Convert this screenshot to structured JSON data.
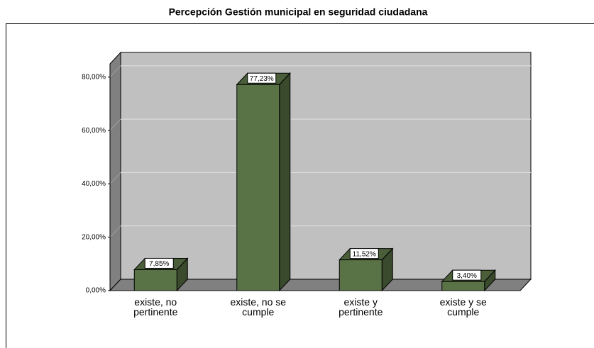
{
  "chart_data": {
    "type": "bar3d",
    "title": "Percepción  Gestión municipal en seguridad ciudadana",
    "categories": [
      "existe, no pertinente",
      "existe, no se cumple",
      "existe y pertinente",
      "existe y se cumple"
    ],
    "values": [
      7.85,
      77.23,
      11.52,
      3.4
    ],
    "value_labels": [
      "7,85%",
      "77,23%",
      "11,52%",
      "3,40%"
    ],
    "color": "#5a7346",
    "ylim": [
      0,
      85
    ],
    "yticks": [
      {
        "value": 0,
        "label": "0,00%"
      },
      {
        "value": 20,
        "label": "20,00%"
      },
      {
        "value": 40,
        "label": "40,00%"
      },
      {
        "value": 60,
        "label": "60,00%"
      },
      {
        "value": 80,
        "label": "80,00%"
      }
    ],
    "grid": true
  }
}
